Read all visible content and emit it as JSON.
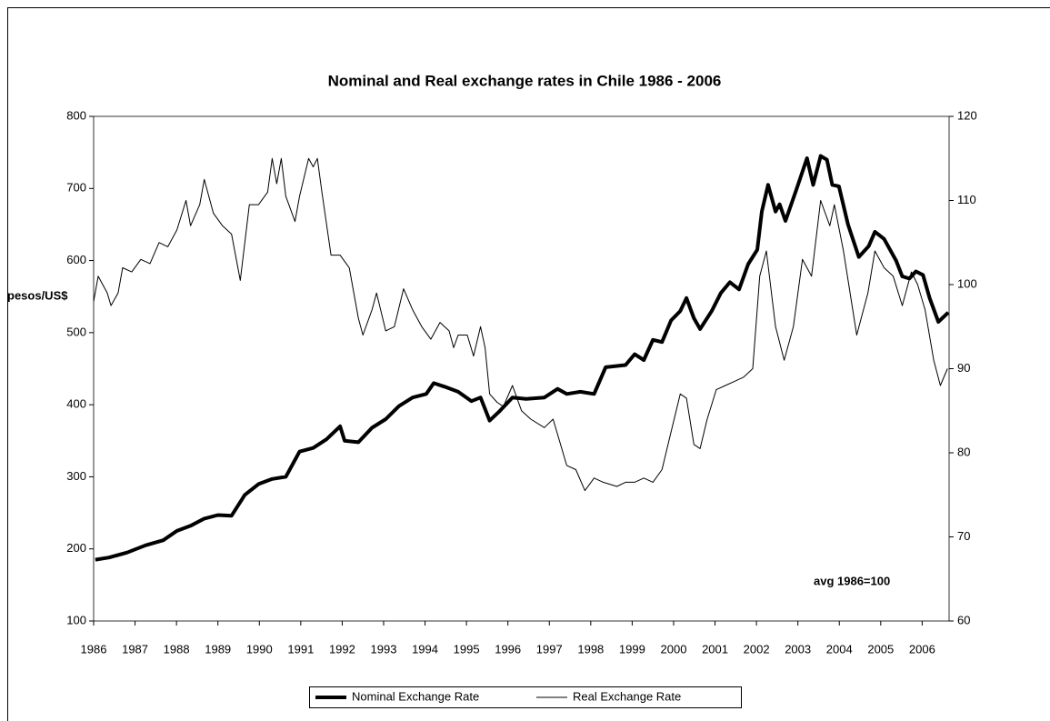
{
  "chart_data": {
    "type": "line",
    "title": "Nominal and Real exchange rates in Chile 1986 - 2006",
    "y_label": "pesos/US$",
    "annotation": "avg 1986=100",
    "xlim": [
      1986,
      2006.65
    ],
    "xticks": [
      1986,
      1987,
      1988,
      1989,
      1990,
      1991,
      1992,
      1993,
      1994,
      1995,
      1996,
      1997,
      1998,
      1999,
      2000,
      2001,
      2002,
      2003,
      2004,
      2005,
      2006
    ],
    "ylim": [
      100,
      800
    ],
    "yticks": [
      100,
      200,
      300,
      400,
      500,
      600,
      700,
      800
    ],
    "y2lim": [
      60,
      120
    ],
    "y2ticks": [
      60,
      70,
      80,
      90,
      100,
      110,
      120
    ],
    "legend": "bottom",
    "series": [
      {
        "name": "Nominal Exchange Rate",
        "color": "#000000",
        "x": [
          1986.04,
          1986.37,
          1986.81,
          1987.25,
          1987.68,
          1988.01,
          1988.34,
          1988.67,
          1989.0,
          1989.33,
          1989.65,
          1989.98,
          1990.31,
          1990.64,
          1990.97,
          1991.3,
          1991.62,
          1991.95,
          1992.06,
          1992.39,
          1992.72,
          1993.05,
          1993.37,
          1993.7,
          1994.03,
          1994.21,
          1994.47,
          1994.8,
          1995.12,
          1995.34,
          1995.56,
          1995.78,
          1996.11,
          1996.44,
          1996.88,
          1997.2,
          1997.42,
          1997.75,
          1998.08,
          1998.36,
          1998.84,
          1999.06,
          1999.28,
          1999.5,
          1999.72,
          1999.94,
          2000.16,
          2000.31,
          2000.49,
          2000.64,
          2000.92,
          2001.14,
          2001.36,
          2001.58,
          2001.8,
          2002.02,
          2002.13,
          2002.28,
          2002.46,
          2002.56,
          2002.7,
          2002.96,
          2003.22,
          2003.37,
          2003.55,
          2003.7,
          2003.83,
          2003.99,
          2004.21,
          2004.47,
          2004.71,
          2004.86,
          2005.08,
          2005.37,
          2005.52,
          2005.69,
          2005.85,
          2006.02,
          2006.18,
          2006.39,
          2006.63
        ],
        "values": [
          185,
          188,
          195,
          205,
          212,
          225,
          232,
          242,
          247,
          246,
          275,
          290,
          297,
          300,
          335,
          340,
          352,
          370,
          350,
          348,
          368,
          380,
          398,
          410,
          415,
          430,
          425,
          418,
          405,
          410,
          378,
          390,
          410,
          408,
          410,
          422,
          415,
          418,
          415,
          452,
          455,
          470,
          462,
          490,
          487,
          517,
          530,
          548,
          520,
          505,
          530,
          555,
          570,
          560,
          595,
          615,
          668,
          705,
          668,
          678,
          655,
          698,
          742,
          705,
          745,
          740,
          705,
          703,
          650,
          605,
          620,
          640,
          630,
          600,
          578,
          575,
          585,
          580,
          548,
          515,
          528
        ]
      },
      {
        "name": "Real Exchange Rate",
        "color": "#000000",
        "axis": "y2",
        "x": [
          1986.0,
          1986.11,
          1986.33,
          1986.42,
          1986.59,
          1986.7,
          1986.92,
          1987.14,
          1987.36,
          1987.58,
          1987.79,
          1988.01,
          1988.23,
          1988.34,
          1988.56,
          1988.67,
          1988.89,
          1989.11,
          1989.33,
          1989.54,
          1989.76,
          1989.98,
          1990.2,
          1990.31,
          1990.42,
          1990.53,
          1990.64,
          1990.86,
          1990.97,
          1991.19,
          1991.3,
          1991.4,
          1991.51,
          1991.73,
          1991.95,
          1992.17,
          1992.39,
          1992.5,
          1992.72,
          1992.83,
          1993.05,
          1993.26,
          1993.48,
          1993.7,
          1993.92,
          1994.14,
          1994.36,
          1994.58,
          1994.69,
          1994.8,
          1995.02,
          1995.17,
          1995.34,
          1995.45,
          1995.56,
          1995.74,
          1995.89,
          1996.11,
          1996.33,
          1996.55,
          1996.88,
          1997.09,
          1997.42,
          1997.64,
          1997.86,
          1998.08,
          1998.3,
          1998.63,
          1998.84,
          1999.06,
          1999.28,
          1999.5,
          1999.72,
          1999.94,
          2000.16,
          2000.31,
          2000.49,
          2000.64,
          2000.81,
          2001.03,
          2001.25,
          2001.47,
          2001.69,
          2001.91,
          2002.08,
          2002.24,
          2002.46,
          2002.67,
          2002.89,
          2003.11,
          2003.33,
          2003.55,
          2003.77,
          2003.88,
          2004.1,
          2004.42,
          2004.69,
          2004.86,
          2005.08,
          2005.3,
          2005.52,
          2005.74,
          2005.89,
          2006.07,
          2006.28,
          2006.44,
          2006.61
        ],
        "values": [
          98,
          101,
          99,
          97.5,
          99,
          102,
          101.5,
          103,
          102.5,
          105,
          104.5,
          106.5,
          110,
          107,
          109.5,
          112.5,
          108.5,
          107,
          106,
          100.5,
          109.5,
          109.5,
          111,
          115,
          112,
          115,
          110.5,
          107.5,
          110.5,
          115,
          114,
          115,
          111,
          103.5,
          103.5,
          102,
          96,
          94,
          97,
          99,
          94.5,
          95,
          99.5,
          97,
          95,
          93.5,
          95.5,
          94.5,
          92.5,
          94,
          94,
          91.5,
          95,
          92.5,
          87,
          86,
          85.5,
          88,
          85,
          84,
          83,
          84,
          78.5,
          78,
          75.5,
          77,
          76.5,
          76,
          76.5,
          76.5,
          77,
          76.5,
          78,
          82.5,
          87,
          86.5,
          81,
          80.5,
          84,
          87.5,
          88,
          88.5,
          89,
          90,
          101,
          104,
          95,
          91,
          95,
          103,
          101,
          110,
          107,
          109.5,
          104,
          94,
          99,
          104,
          102,
          101,
          97.5,
          101.5,
          100,
          97,
          91,
          88,
          90
        ]
      }
    ]
  }
}
